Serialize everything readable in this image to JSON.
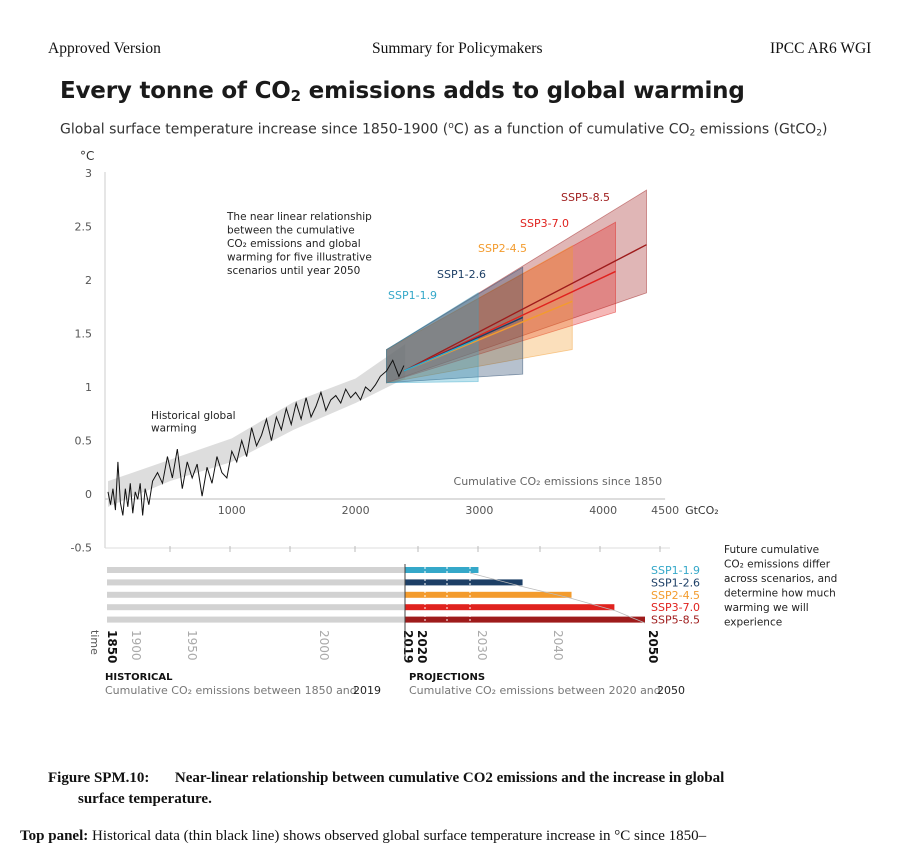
{
  "header": {
    "left": "Approved Version",
    "center": "Summary for Policymakers",
    "right": "IPCC AR6 WGI"
  },
  "figure": {
    "title_main": "Every tonne of CO",
    "title_sub": "2",
    "title_rest": " emissions adds to global warming",
    "subtitle_part1": "Global surface temperature increase since 1850-1900 (",
    "subtitle_degree": "o",
    "subtitle_part2": "C) as a function of cumulative CO",
    "subtitle_sub": "2",
    "subtitle_part3": " emissions (GtCO",
    "subtitle_sub2": "2",
    "subtitle_part4": ")"
  },
  "chart_data": {
    "type": "line",
    "ylabel": "°C",
    "xlabel": "Cumulative CO₂ emissions since 1850",
    "x_unit": "GtCO₂",
    "ylim": [
      -0.5,
      3
    ],
    "xlim": [
      0,
      4500
    ],
    "y_ticks": [
      "3",
      "2.5",
      "2",
      "1.5",
      "1",
      "0.5",
      "0",
      "-0.5"
    ],
    "y_tick_values": [
      3,
      2.5,
      2,
      1.5,
      1,
      0.5,
      0,
      -0.5
    ],
    "x_ticks": [
      "1000",
      "2000",
      "3000",
      "4000",
      "4500"
    ],
    "x_tick_values": [
      1000,
      2000,
      3000,
      4000,
      4500
    ],
    "annotation_scenarios": [
      "The near linear relationship",
      "between the cumulative",
      "CO₂ emissions and global",
      "warming for five illustrative",
      "scenarios until year 2050"
    ],
    "annotation_historical": [
      "Historical global",
      "warming"
    ],
    "historical": {
      "x": [
        0,
        20,
        40,
        60,
        80,
        100,
        120,
        140,
        160,
        180,
        200,
        220,
        240,
        260,
        280,
        300,
        330,
        360,
        400,
        440,
        480,
        520,
        560,
        600,
        640,
        680,
        720,
        760,
        800,
        840,
        880,
        920,
        960,
        1000,
        1040,
        1080,
        1120,
        1160,
        1200,
        1240,
        1280,
        1320,
        1360,
        1400,
        1440,
        1480,
        1520,
        1560,
        1600,
        1640,
        1680,
        1720,
        1760,
        1800,
        1840,
        1880,
        1920,
        1960,
        2000,
        2040,
        2080,
        2120,
        2160,
        2200,
        2250,
        2300,
        2350,
        2390
      ],
      "y": [
        0.02,
        -0.1,
        0.05,
        -0.15,
        0.3,
        -0.08,
        -0.2,
        0.05,
        -0.12,
        0.1,
        -0.18,
        0.02,
        -0.05,
        0.1,
        -0.2,
        0.05,
        -0.1,
        0.12,
        0.2,
        0.1,
        0.35,
        0.15,
        0.42,
        0.05,
        0.3,
        0.15,
        0.28,
        -0.02,
        0.25,
        0.1,
        0.35,
        0.2,
        0.15,
        0.4,
        0.3,
        0.5,
        0.35,
        0.62,
        0.45,
        0.55,
        0.7,
        0.5,
        0.72,
        0.6,
        0.8,
        0.65,
        0.85,
        0.7,
        0.9,
        0.72,
        0.82,
        0.95,
        0.78,
        0.88,
        0.92,
        0.85,
        0.98,
        0.9,
        0.95,
        0.88,
        1.0,
        0.96,
        1.02,
        1.1,
        1.15,
        1.25,
        1.1,
        1.2
      ]
    },
    "historical_range": {
      "x": [
        0,
        500,
        1000,
        1500,
        2000,
        2400
      ],
      "low": [
        -0.12,
        0.12,
        0.3,
        0.6,
        0.85,
        1.08
      ],
      "high": [
        0.12,
        0.32,
        0.52,
        0.86,
        1.08,
        1.4
      ]
    },
    "series": [
      {
        "name": "SSP1-1.9",
        "color": "#35a8c9",
        "x_end": 2990,
        "central": [
          [
            2390,
            1.15
          ],
          [
            2990,
            1.45
          ]
        ],
        "band": [
          [
            2250,
            1.04
          ],
          [
            2990,
            1.05
          ],
          [
            2990,
            1.88
          ],
          [
            2250,
            1.35
          ]
        ]
      },
      {
        "name": "SSP1-2.6",
        "color": "#1d3f66",
        "x_end": 3350,
        "central": [
          [
            2390,
            1.15
          ],
          [
            3350,
            1.65
          ]
        ],
        "band": [
          [
            2250,
            1.04
          ],
          [
            3350,
            1.12
          ],
          [
            3350,
            2.12
          ],
          [
            2250,
            1.35
          ]
        ]
      },
      {
        "name": "SSP2-4.5",
        "color": "#f39b2d",
        "x_end": 3750,
        "central": [
          [
            2390,
            1.15
          ],
          [
            3750,
            1.8
          ]
        ],
        "band": [
          [
            2250,
            1.04
          ],
          [
            3750,
            1.35
          ],
          [
            3750,
            2.32
          ],
          [
            2250,
            1.35
          ]
        ]
      },
      {
        "name": "SSP3-7.0",
        "color": "#e0221e",
        "x_end": 4100,
        "central": [
          [
            2390,
            1.15
          ],
          [
            4100,
            2.08
          ]
        ],
        "band": [
          [
            2250,
            1.04
          ],
          [
            4100,
            1.7
          ],
          [
            4100,
            2.54
          ],
          [
            2250,
            1.35
          ]
        ]
      },
      {
        "name": "SSP5-8.5",
        "color": "#9e1b1b",
        "x_end": 4350,
        "central": [
          [
            2390,
            1.15
          ],
          [
            4350,
            2.33
          ]
        ],
        "band": [
          [
            2250,
            1.04
          ],
          [
            4350,
            1.88
          ],
          [
            4350,
            2.84
          ],
          [
            2250,
            1.35
          ]
        ]
      }
    ]
  },
  "timeline": {
    "years": [
      "1850",
      "1900",
      "1950",
      "2000",
      "2019",
      "2020",
      "2030",
      "2040",
      "2050"
    ],
    "time_label": "time",
    "historical_title": "HISTORICAL",
    "historical_desc_1": "Cumulative CO₂ emissions between 1850 and ",
    "historical_desc_2": "2019",
    "projections_title": "PROJECTIONS",
    "projections_desc_1": "Cumulative CO₂ emissions between 2020 and ",
    "projections_desc_2": "2050",
    "future_note": [
      "Future cumulative",
      "CO₂ emissions differ",
      "across scenarios, and",
      "determine how much",
      "warming we will",
      "experience"
    ],
    "bar_labels": [
      "SSP1-1.9",
      "SSP1-2.6",
      "SSP2-4.5",
      "SSP3-7.0",
      "SSP5-8.5"
    ],
    "bar_colors": [
      "#35a8c9",
      "#1d3f66",
      "#f39b2d",
      "#e0221e",
      "#9e1b1b"
    ],
    "bar_end_gtco2": [
      2990,
      3350,
      3750,
      4100,
      4350
    ]
  },
  "caption": {
    "fig_label": "Figure SPM.10:",
    "fig_title_1": "Near-linear relationship between cumulative CO2 emissions and the increase in global",
    "fig_title_2": "surface temperature.",
    "panel_label": "Top panel:",
    "panel_text": " Historical data (thin black line) shows observed global surface temperature increase in °C since 1850–"
  }
}
